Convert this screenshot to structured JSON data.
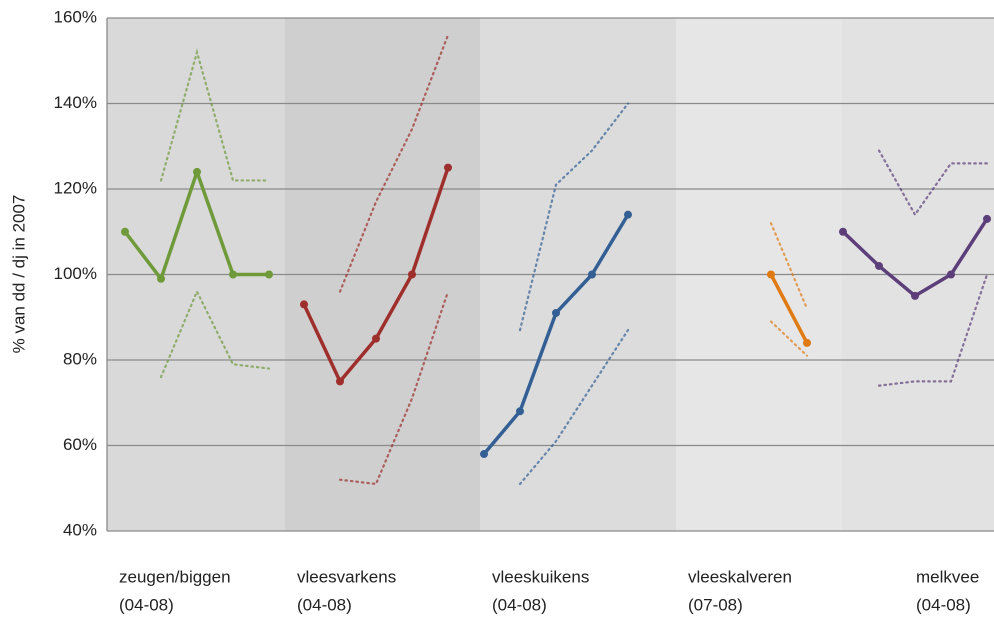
{
  "chart_data": {
    "type": "line",
    "y_label": "% van dd / dj in 2007",
    "ylim": [
      40,
      160
    ],
    "yticks": [
      {
        "value": 40,
        "label": "40%"
      },
      {
        "value": 60,
        "label": "60%"
      },
      {
        "value": 80,
        "label": "80%"
      },
      {
        "value": 100,
        "label": "100%"
      },
      {
        "value": 120,
        "label": "120%"
      },
      {
        "value": 140,
        "label": "140%"
      },
      {
        "value": 160,
        "label": "160%"
      }
    ],
    "grid": true,
    "groups": [
      {
        "name": "zeugen/biggen",
        "period": "(04-08)",
        "color": "#6f9a3a",
        "values": [
          110,
          99,
          124,
          100,
          100
        ],
        "upper": [
          null,
          122,
          152,
          122,
          122
        ],
        "lower": [
          null,
          76,
          96,
          79,
          78
        ]
      },
      {
        "name": "vleesvarkens",
        "period": "(04-08)",
        "color": "#9e2f2c",
        "values": [
          93,
          75,
          85,
          100,
          125
        ],
        "upper": [
          null,
          96,
          117,
          134,
          156
        ],
        "lower": [
          null,
          52,
          51,
          71,
          96
        ]
      },
      {
        "name": "vleeskuikens",
        "period": "(04-08)",
        "color": "#335f94",
        "values": [
          58,
          68,
          91,
          100,
          114
        ],
        "upper": [
          null,
          87,
          121,
          129,
          140
        ],
        "lower": [
          null,
          51,
          61,
          74,
          87
        ]
      },
      {
        "name": "vleeskalveren",
        "period": "(07-08)",
        "color": "#e07a12",
        "values": [
          100,
          84
        ],
        "upper": [
          112,
          92
        ],
        "lower": [
          89,
          81
        ]
      },
      {
        "name": "melkvee",
        "period": "(04-08)",
        "color": "#5c3f7a",
        "values": [
          110,
          102,
          95,
          100,
          113
        ],
        "upper": [
          null,
          129,
          114,
          126,
          126
        ],
        "lower": [
          null,
          74,
          75,
          75,
          100
        ]
      }
    ]
  }
}
